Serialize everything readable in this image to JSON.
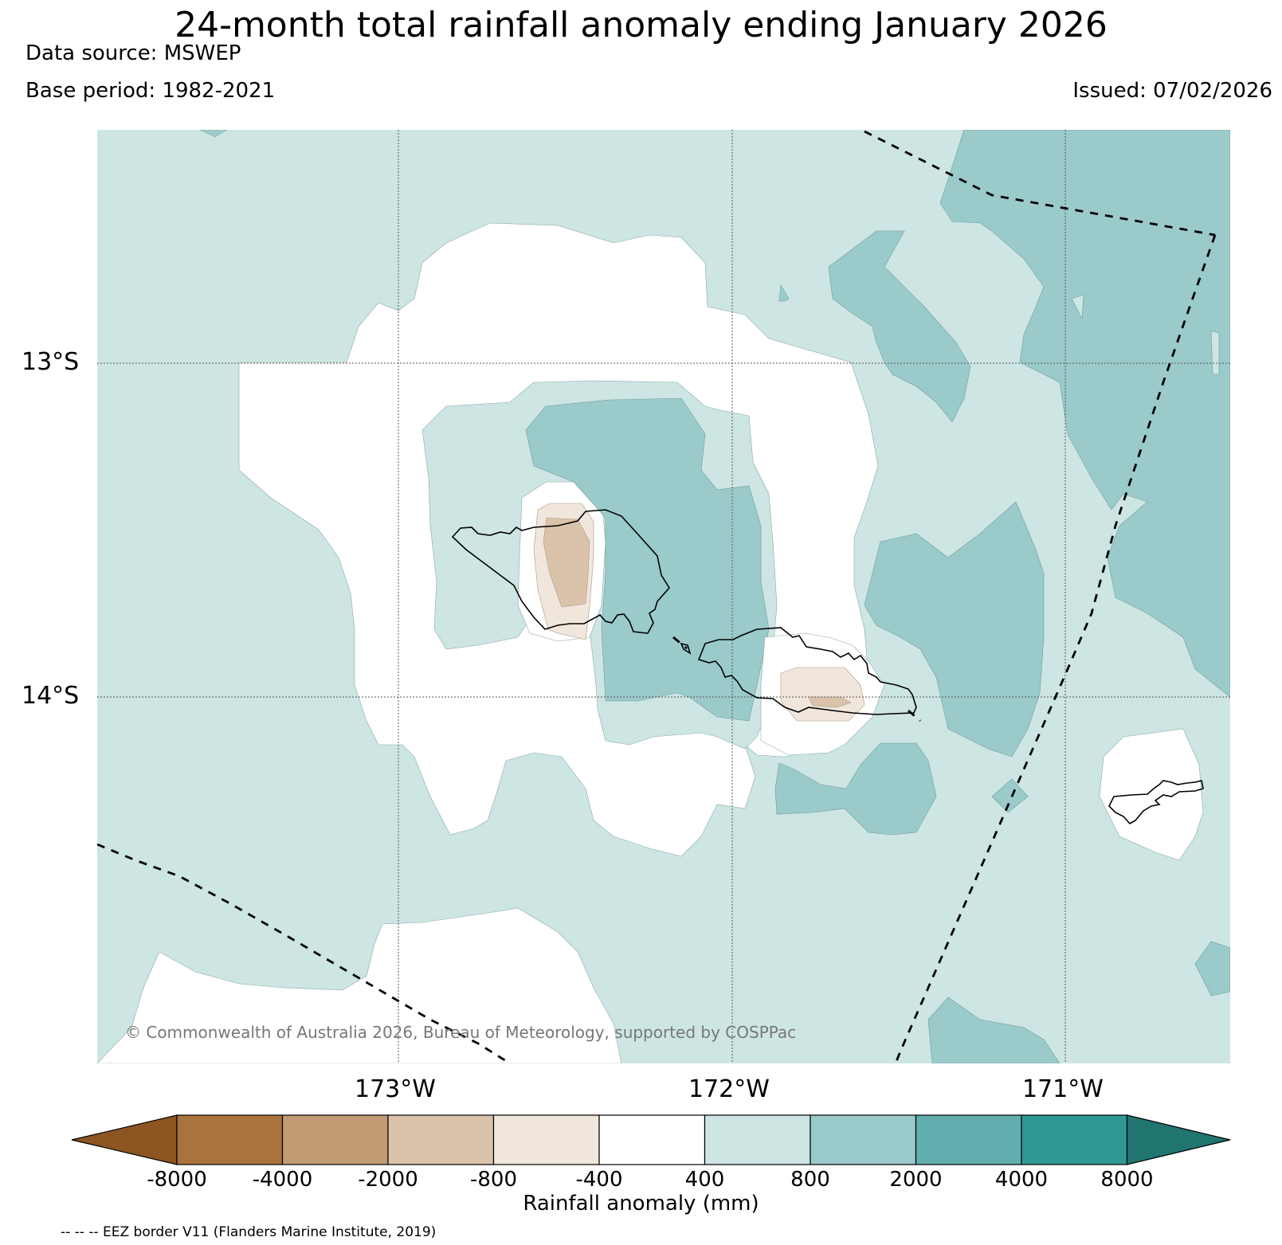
{
  "header": {
    "title": "24-month total rainfall anomaly ending January 2026",
    "data_source": "Data source: MSWEP",
    "base_period": "Base period: 1982-2021",
    "issued": "Issued: 07/02/2026"
  },
  "map": {
    "lat_labels": [
      "13°S",
      "14°S"
    ],
    "lon_labels": [
      "173°W",
      "172°W",
      "171°W"
    ],
    "copyright": "© Commonwealth of Australia 2026, Bureau of Meteorology, supported by COSPPac",
    "eez_note": "-- -- -- EEZ border V11 (Flanders Marine Institute, 2019)"
  },
  "colorbar": {
    "label": "Rainfall anomaly (mm)",
    "ticks": [
      "-8000",
      "-4000",
      "-2000",
      "-800",
      "-400",
      "400",
      "800",
      "2000",
      "4000",
      "8000"
    ],
    "colors": {
      "lt_-8000": "#8c5522",
      "-8000_-4000": "#a9733d",
      "-4000_-2000": "#c29a74",
      "-2000_-800": "#dbc3ab",
      "-800_-400": "#f0e6dc",
      "-400_400": "#ffffff",
      "400_800": "#cde5e3",
      "800_2000": "#9bcacb",
      "2000_4000": "#62aeae",
      "4000_8000": "#2f9893",
      "gt_8000": "#207571"
    }
  }
}
